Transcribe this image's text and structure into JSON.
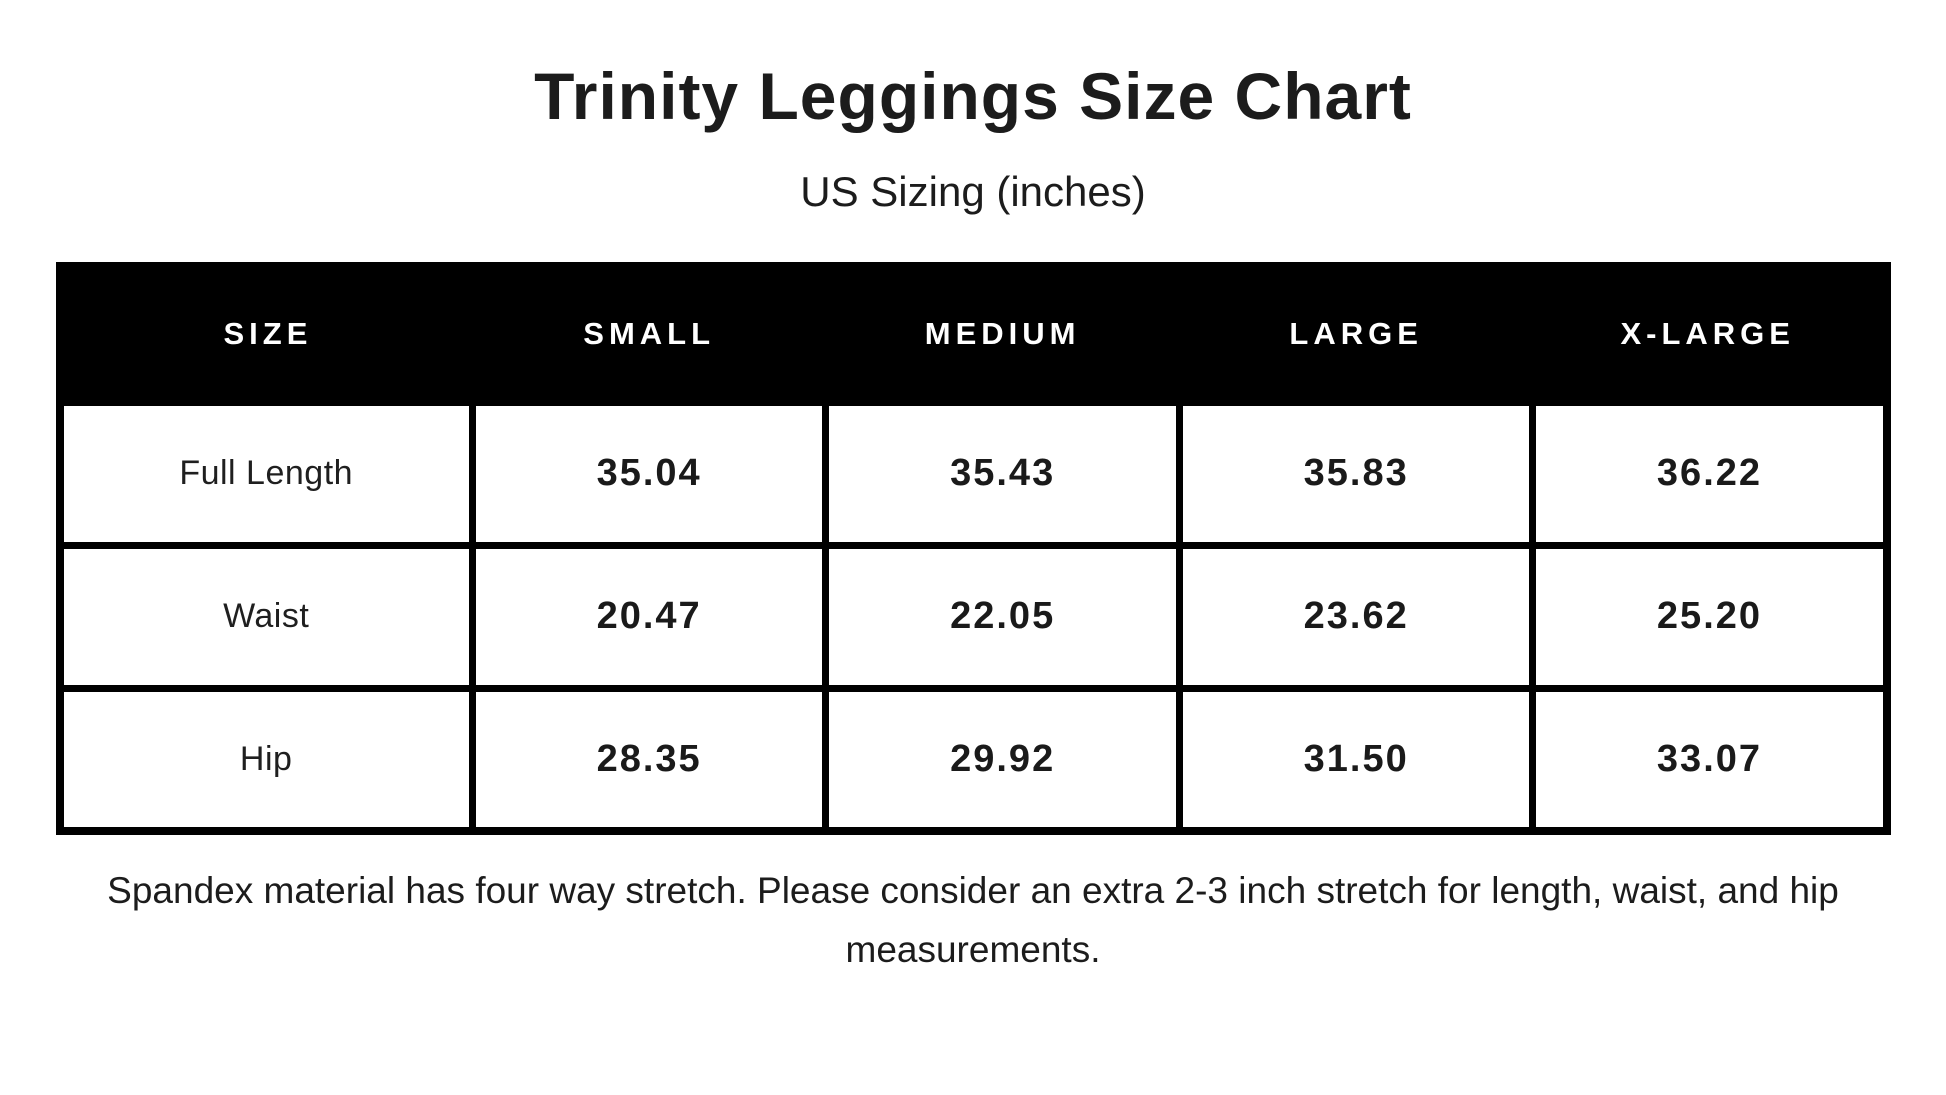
{
  "page": {
    "title": "Trinity Leggings Size Chart",
    "subtitle": "US Sizing (inches)",
    "footnote": "Spandex material has four way stretch. Please consider an extra 2-3 inch stretch for length, waist, and hip measurements."
  },
  "chart_data": {
    "type": "table",
    "title": "Trinity Leggings Size Chart",
    "subtitle": "US Sizing (inches)",
    "units": "inches",
    "columns": [
      "SIZE",
      "SMALL",
      "MEDIUM",
      "LARGE",
      "X-LARGE"
    ],
    "rows": [
      {
        "label": "Full Length",
        "values": [
          "35.04",
          "35.43",
          "35.83",
          "36.22"
        ]
      },
      {
        "label": "Waist",
        "values": [
          "20.47",
          "22.05",
          "23.62",
          "25.20"
        ]
      },
      {
        "label": "Hip",
        "values": [
          "28.35",
          "29.92",
          "31.50",
          "33.07"
        ]
      }
    ],
    "note": "Spandex material has four way stretch. Please consider an extra 2-3 inch stretch for length, waist, and hip measurements."
  },
  "colors": {
    "background": "#ffffff",
    "header_bg": "#000000",
    "header_text": "#ffffff",
    "border": "#000000",
    "body_text": "#1a1a1a"
  }
}
